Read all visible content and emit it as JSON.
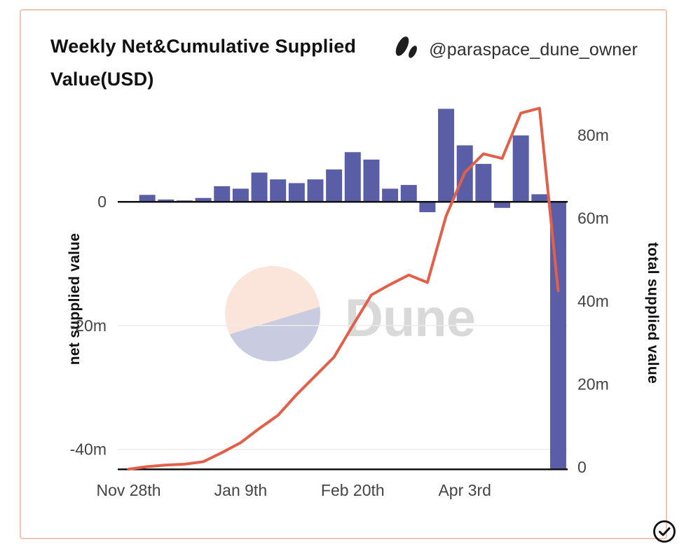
{
  "header": {
    "title": "Weekly Net&Cumulative Supplied Value(USD)",
    "author_handle": "@paraspace_dune_owner"
  },
  "watermark": {
    "text": "Dune"
  },
  "chart_data": {
    "type": "combo",
    "title": "Weekly Net&Cumulative Supplied Value(USD)",
    "unit": "USD, m = millions",
    "num_points": 24,
    "x_interval": "weekly",
    "x_tick_labels": [
      {
        "index": 0,
        "label": "Nov 28th"
      },
      {
        "index": 6,
        "label": "Jan 9th"
      },
      {
        "index": 12,
        "label": "Feb 20th"
      },
      {
        "index": 18,
        "label": "Apr 3rd"
      }
    ],
    "series": [
      {
        "name": "net supplied value",
        "type": "bar",
        "axis": "left",
        "color": "#5a5ea6",
        "values_millions": [
          0,
          1.1,
          0.35,
          0.2,
          0.6,
          2.5,
          2.1,
          4.7,
          3.6,
          3.0,
          3.6,
          5.2,
          8.0,
          6.8,
          2.1,
          2.7,
          -1.7,
          15.0,
          9.1,
          6.1,
          -1.0,
          10.7,
          1.2,
          -43.2
        ]
      },
      {
        "name": "total supplied value",
        "type": "line",
        "axis": "right",
        "color": "#e2604a",
        "values_millions": [
          0,
          0.6,
          1.0,
          1.2,
          1.8,
          4.0,
          6.4,
          9.8,
          13.0,
          18.0,
          22.5,
          27.0,
          34.6,
          42.0,
          44.5,
          46.8,
          45.0,
          61.0,
          71.5,
          76.0,
          74.9,
          85.8,
          87.0,
          43.0
        ]
      }
    ],
    "left_axis": {
      "label": "net supplied value",
      "range_millions": [
        -43.5,
        16.5
      ],
      "ticks": [
        {
          "value": 0,
          "label": "0"
        },
        {
          "value": -20,
          "label": "-20m"
        },
        {
          "value": -40,
          "label": "-40m"
        }
      ]
    },
    "right_axis": {
      "label": "total supplied value",
      "range_millions": [
        0,
        88
      ],
      "ticks": [
        {
          "value": 80,
          "label": "80m"
        },
        {
          "value": 60,
          "label": "60m"
        },
        {
          "value": 40,
          "label": "40m"
        },
        {
          "value": 20,
          "label": "20m"
        },
        {
          "value": 0,
          "label": "0"
        }
      ]
    },
    "grid": {
      "horizontal_at_left_values": [
        -20,
        -40
      ],
      "color": "#ececec"
    },
    "legend": "none",
    "colors": {
      "axis_line": "#111111",
      "tick_text": "#444444"
    }
  },
  "footer": {
    "status_icon": "check-circle"
  }
}
